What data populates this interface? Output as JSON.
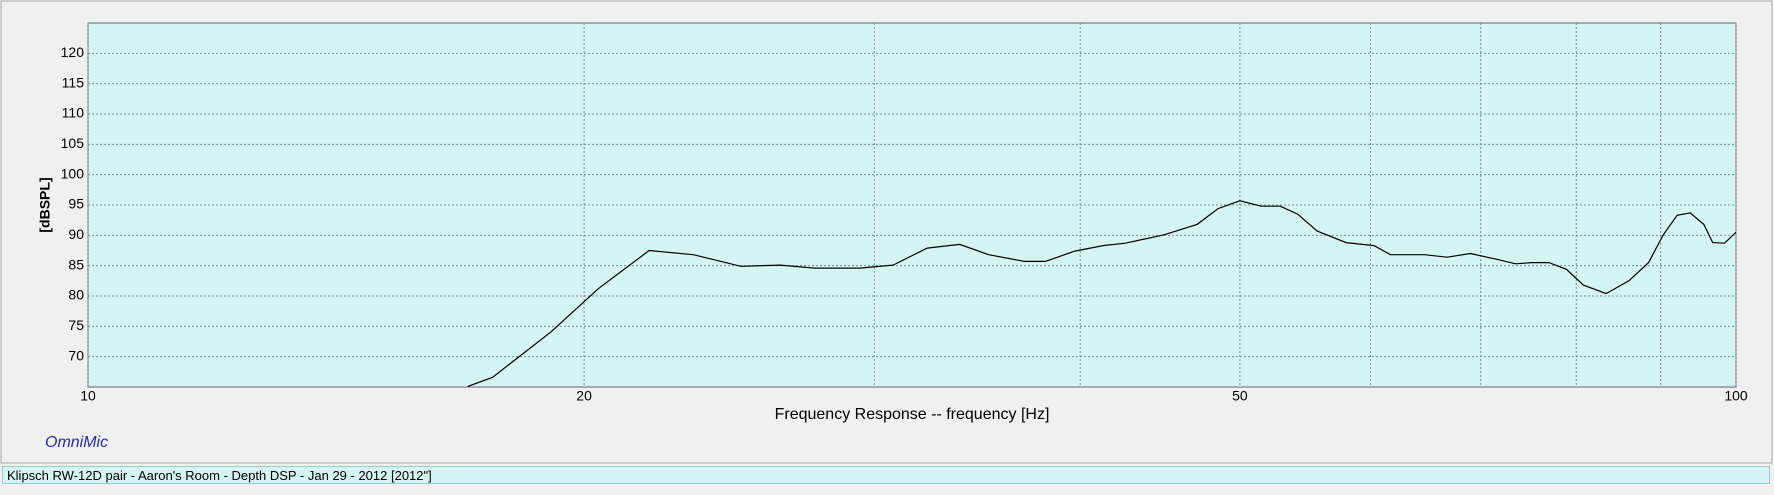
{
  "chart_data": {
    "type": "line",
    "x_label": "Frequency Response -- frequency [Hz]",
    "y_label": "[dBSPL]",
    "watermark": "OmniMic",
    "status": "Klipsch RW-12D pair - Aaron's Room - Depth DSP - Jan 29 - 2012 [2012\"]",
    "x_log": true,
    "xlim": [
      10,
      100
    ],
    "xticks": [
      10,
      20,
      50,
      100
    ],
    "x_minor_grid": [
      30,
      40,
      60,
      70,
      80,
      90
    ],
    "ylim": [
      65,
      125
    ],
    "yticks": [
      70,
      75,
      80,
      85,
      90,
      95,
      100,
      105,
      110,
      115,
      120
    ],
    "grid": true,
    "plot_background": "#d5f4f4",
    "series": [
      {
        "color": "#000000",
        "x": [
          17.0,
          17.6,
          19.1,
          20.4,
          21.9,
          23.3,
          24.9,
          26.3,
          27.6,
          29.4,
          30.8,
          32.3,
          33.8,
          35.2,
          37.0,
          38.1,
          39.7,
          41.3,
          42.6,
          45.0,
          47.1,
          48.5,
          50.0,
          51.5,
          52.9,
          54.2,
          55.7,
          58.0,
          60.3,
          61.7,
          64.7,
          66.8,
          69.0,
          71.7,
          73.5,
          75.2,
          77.0,
          78.9,
          80.8,
          83.4,
          86.1,
          88.5,
          90.3,
          92.1,
          93.8,
          95.6,
          96.8,
          98.4,
          100
        ],
        "values": [
          65.1,
          66.6,
          74.1,
          81.2,
          87.5,
          86.8,
          84.9,
          85.1,
          84.6,
          84.6,
          85.1,
          87.9,
          88.5,
          86.8,
          85.7,
          85.7,
          87.4,
          88.3,
          88.7,
          90.1,
          91.8,
          94.4,
          95.7,
          94.8,
          94.8,
          93.5,
          90.7,
          88.8,
          88.3,
          86.8,
          86.8,
          86.4,
          87.0,
          86.0,
          85.3,
          85.5,
          85.5,
          84.4,
          81.8,
          80.4,
          82.5,
          85.5,
          90.0,
          93.3,
          93.7,
          91.8,
          88.8,
          88.7,
          90.5
        ]
      }
    ]
  }
}
